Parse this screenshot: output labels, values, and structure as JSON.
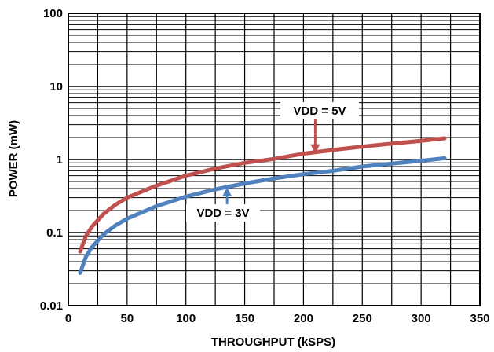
{
  "chart_data": {
    "type": "line",
    "title": "",
    "xlabel": "THROUGHPUT (kSPS)",
    "ylabel": "POWER (mW)",
    "xlim": [
      0,
      350
    ],
    "ylim": [
      0.01,
      100
    ],
    "yscale": "log",
    "grid": true,
    "x_ticks": [
      "0",
      "50",
      "100",
      "150",
      "200",
      "250",
      "300",
      "350"
    ],
    "y_ticks": [
      "0.01",
      "0.1",
      "1",
      "10",
      "100"
    ],
    "series": [
      {
        "name": "VDD = 5V",
        "color": "#c0504d",
        "x": [
          10,
          15,
          20,
          30,
          40,
          50,
          75,
          100,
          125,
          150,
          175,
          200,
          225,
          250,
          275,
          300,
          320
        ],
        "y": [
          0.055,
          0.09,
          0.12,
          0.18,
          0.24,
          0.3,
          0.44,
          0.6,
          0.75,
          0.9,
          1.02,
          1.2,
          1.35,
          1.5,
          1.65,
          1.8,
          1.95
        ]
      },
      {
        "name": "VDD = 3V",
        "color": "#4f81bd",
        "x": [
          10,
          15,
          20,
          30,
          40,
          50,
          75,
          100,
          125,
          150,
          175,
          200,
          225,
          250,
          275,
          300,
          320
        ],
        "y": [
          0.028,
          0.047,
          0.063,
          0.095,
          0.125,
          0.155,
          0.23,
          0.31,
          0.39,
          0.47,
          0.55,
          0.63,
          0.7,
          0.8,
          0.88,
          0.96,
          1.04
        ]
      }
    ],
    "annotations": [
      {
        "text": "VDD = 5V",
        "series": 0,
        "arrow_x": 210,
        "arrow_y": 1.2,
        "color": "#c0504d"
      },
      {
        "text": "VDD = 3V",
        "series": 1,
        "arrow_x": 135,
        "arrow_y": 0.42,
        "color": "#4f81bd"
      }
    ]
  }
}
